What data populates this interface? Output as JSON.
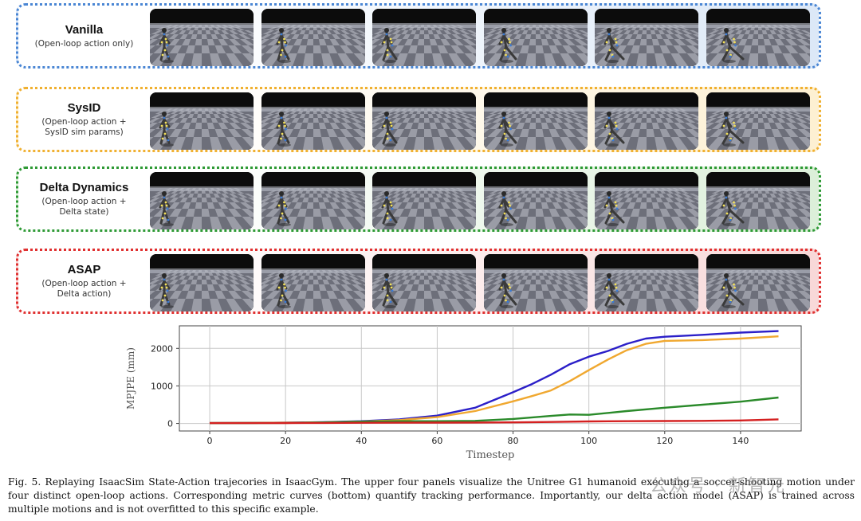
{
  "rows": [
    {
      "name": "Vanilla",
      "subtitle": "(Open-loop action only)",
      "border": "#4a86d4",
      "tint": "#dce8f7"
    },
    {
      "name": "SysID",
      "subtitle": "(Open-loop action +\nSysID sim params)",
      "border": "#f0b030",
      "tint": "#fdf0d2"
    },
    {
      "name": "Delta Dynamics",
      "subtitle": "(Open-loop action +\nDelta state)",
      "border": "#2e9a35",
      "tint": "#dcefd9"
    },
    {
      "name": "ASAP",
      "subtitle": "(Open-loop action +\nDelta action)",
      "border": "#e03030",
      "tint": "#f8d8d8"
    }
  ],
  "chart_data": {
    "type": "line",
    "xlabel": "Timestep",
    "ylabel": "MPJPE (mm)",
    "xlim": [
      -8,
      156
    ],
    "ylim": [
      -200,
      2600
    ],
    "xticks": [
      0,
      20,
      40,
      60,
      80,
      100,
      120,
      140
    ],
    "yticks": [
      0,
      1000,
      2000
    ],
    "grid": true,
    "series": [
      {
        "color": "#2b1fc8",
        "x": [
          0,
          10,
          20,
          30,
          40,
          50,
          60,
          70,
          80,
          85,
          90,
          95,
          100,
          105,
          110,
          115,
          120,
          130,
          140,
          150
        ],
        "y": [
          10,
          15,
          20,
          35,
          60,
          110,
          210,
          420,
          830,
          1050,
          1300,
          1580,
          1780,
          1930,
          2120,
          2260,
          2310,
          2360,
          2420,
          2460
        ]
      },
      {
        "color": "#f0a830",
        "x": [
          0,
          10,
          20,
          30,
          40,
          50,
          60,
          70,
          80,
          85,
          90,
          95,
          100,
          105,
          110,
          115,
          120,
          130,
          140,
          150
        ],
        "y": [
          10,
          14,
          20,
          30,
          50,
          90,
          170,
          330,
          590,
          730,
          880,
          1130,
          1420,
          1700,
          1950,
          2120,
          2200,
          2220,
          2260,
          2320
        ]
      },
      {
        "color": "#2a8a2a",
        "x": [
          0,
          10,
          20,
          30,
          40,
          50,
          60,
          70,
          80,
          90,
          95,
          100,
          110,
          120,
          130,
          140,
          150
        ],
        "y": [
          10,
          12,
          15,
          30,
          50,
          60,
          60,
          70,
          120,
          200,
          240,
          230,
          330,
          420,
          500,
          580,
          690
        ]
      },
      {
        "color": "#d42020",
        "x": [
          0,
          10,
          20,
          30,
          40,
          50,
          60,
          70,
          80,
          90,
          100,
          110,
          120,
          130,
          140,
          150
        ],
        "y": [
          10,
          10,
          12,
          15,
          18,
          20,
          22,
          25,
          30,
          40,
          55,
          60,
          65,
          70,
          80,
          110
        ]
      }
    ]
  },
  "caption": "Fig. 5.   Replaying IsaacSim State-Action trajecories in IsaacGym. The upper four panels visualize the Unitree G1 humanoid executing a soccer-shooting motion under four distinct open-loop actions. Corresponding metric curves (bottom) quantify tracking performance. Importantly, our delta action model (ASAP) is trained across multiple motions and is not overfitted to this specific example.",
  "watermark": "公众号 · 新智元"
}
